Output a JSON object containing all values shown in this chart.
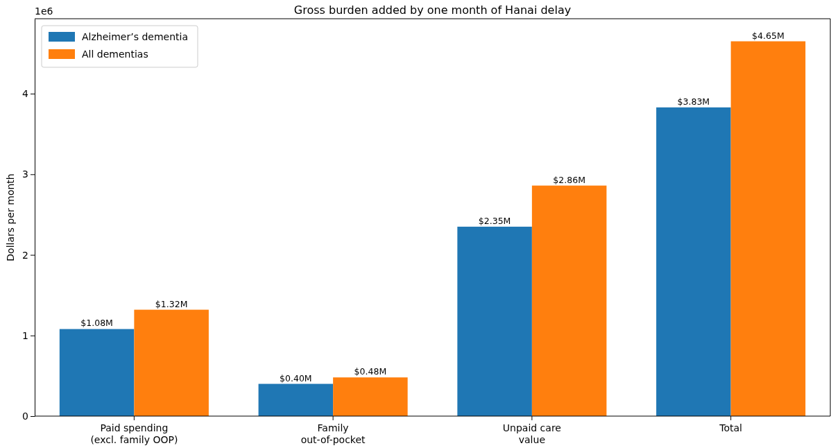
{
  "chart_data": {
    "type": "bar",
    "title": "Gross burden added by one month of Hanai delay",
    "ylabel": "Dollars per month",
    "categories": [
      "Paid spending\n(excl. family OOP)",
      "Family\nout-of-pocket",
      "Unpaid care\nvalue",
      "Total"
    ],
    "series": [
      {
        "name": "Alzheimer’s dementia",
        "color": "#1f77b4",
        "values": [
          1.08,
          0.4,
          2.35,
          3.83
        ],
        "value_labels": [
          "$1.08M",
          "$0.40M",
          "$2.35M",
          "$3.83M"
        ]
      },
      {
        "name": "All dementias",
        "color": "#ff7f0e",
        "values": [
          1.32,
          0.48,
          2.86,
          4.65
        ],
        "value_labels": [
          "$1.32M",
          "$0.48M",
          "$2.86M",
          "$4.65M"
        ]
      }
    ],
    "ylim": [
      0,
      4.93
    ],
    "yticks": [
      0,
      1,
      2,
      3,
      4
    ],
    "annotations": [
      "1e6"
    ],
    "legend": "top left",
    "grid": false
  }
}
